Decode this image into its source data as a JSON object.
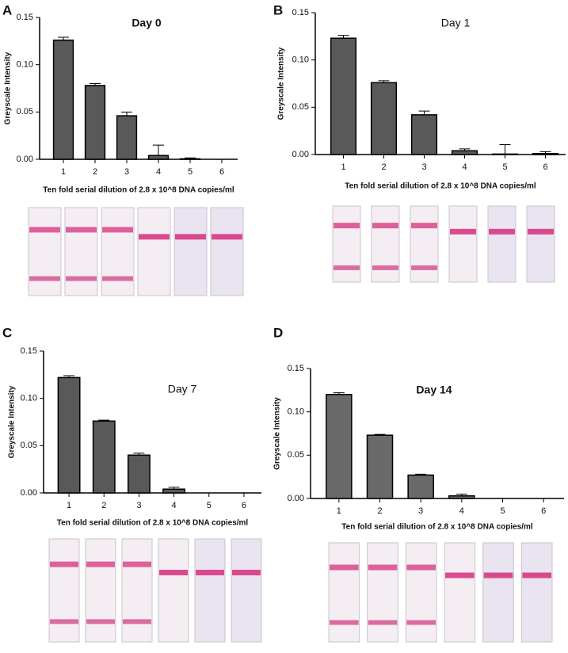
{
  "chart_data": [
    {
      "type": "bar",
      "label": "A",
      "title": "Day 0",
      "ylabel": "Greyscale Intensity",
      "xlabel": "Ten fold serial dilution of  2.8 x 10^8 DNA copies/ml",
      "categories": [
        "1",
        "2",
        "3",
        "4",
        "5",
        "6"
      ],
      "values": [
        0.126,
        0.078,
        0.046,
        0.004,
        0.0005,
        0
      ],
      "errors": [
        0.003,
        0.002,
        0.004,
        0.011,
        0.001,
        0
      ],
      "color": "#595959",
      "ylim": [
        0,
        0.15
      ],
      "yticks": [
        {
          "value": 0,
          "label": "0.00"
        },
        {
          "value": 0.05,
          "label": "0.05"
        },
        {
          "value": 0.1,
          "label": "0.10"
        },
        {
          "value": 0.15,
          "label": "0.15"
        }
      ]
    },
    {
      "type": "bar",
      "label": "B",
      "title": "Day 1",
      "ylabel": "Greyscale Intensity",
      "xlabel": "Ten fold serial dilution of  2.8 x 10^8 DNA copies/ml",
      "categories": [
        "1",
        "2",
        "3",
        "4",
        "5",
        "6"
      ],
      "values": [
        0.123,
        0.076,
        0.042,
        0.004,
        0.0005,
        0.001
      ],
      "errors": [
        0.003,
        0.002,
        0.004,
        0.002,
        0.01,
        0.002
      ],
      "color": "#595959",
      "ylim": [
        0,
        0.15
      ],
      "yticks": [
        {
          "value": 0,
          "label": "0.00"
        },
        {
          "value": 0.05,
          "label": "0.05"
        },
        {
          "value": 0.1,
          "label": "0.10"
        },
        {
          "value": 0.15,
          "label": "0.15"
        }
      ]
    },
    {
      "type": "bar",
      "label": "C",
      "title": "Day 7",
      "ylabel": "Greyscale Intensity",
      "xlabel": "Ten fold serial dilution of  2.8 x 10^8 DNA copies/ml",
      "categories": [
        "1",
        "2",
        "3",
        "4",
        "5",
        "6"
      ],
      "values": [
        0.122,
        0.076,
        0.04,
        0.004,
        0,
        0
      ],
      "errors": [
        0.002,
        0.001,
        0.002,
        0.002,
        0,
        0
      ],
      "color": "#595959",
      "ylim": [
        0,
        0.15
      ],
      "yticks": [
        {
          "value": 0,
          "label": "0.00"
        },
        {
          "value": 0.05,
          "label": "0.05"
        },
        {
          "value": 0.1,
          "label": "0.10"
        },
        {
          "value": 0.15,
          "label": "0.15"
        }
      ]
    },
    {
      "type": "bar",
      "label": "D",
      "title": "Day 14",
      "ylabel": "Greyscale Intensity",
      "xlabel": "Ten fold serial dilution of  2.8 x 10^8 DNA copies/ml",
      "categories": [
        "1",
        "2",
        "3",
        "4",
        "5",
        "6"
      ],
      "values": [
        0.12,
        0.073,
        0.027,
        0.003,
        0,
        0
      ],
      "errors": [
        0.002,
        0.001,
        0.001,
        0.002,
        0,
        0
      ],
      "color": "#6a6a6a",
      "ylim": [
        0,
        0.15
      ],
      "yticks": [
        {
          "value": 0,
          "label": "0.00"
        },
        {
          "value": 0.05,
          "label": "0.05"
        },
        {
          "value": 0.1,
          "label": "0.10"
        },
        {
          "value": 0.15,
          "label": "0.15"
        }
      ]
    }
  ]
}
